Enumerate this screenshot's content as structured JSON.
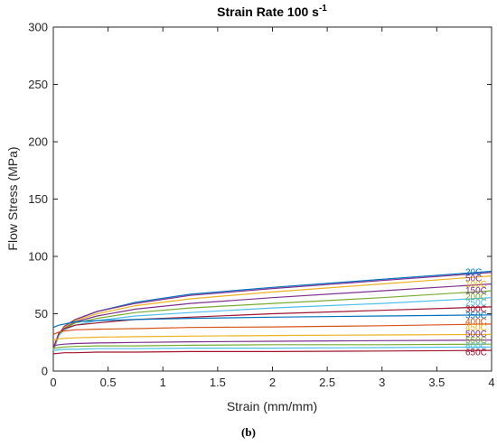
{
  "chart_data": {
    "type": "line",
    "title": "Strain Rate 100 s",
    "title_superscript": "-1",
    "xlabel": "Strain (mm/mm)",
    "ylabel": "Flow Stress (MPa)",
    "xlim": [
      0,
      4
    ],
    "ylim": [
      0,
      300
    ],
    "x_ticks": [
      "0",
      "0.5",
      "1",
      "1.5",
      "2",
      "2.5",
      "3",
      "3.5",
      "4"
    ],
    "y_ticks": [
      "0",
      "50",
      "100",
      "150",
      "200",
      "250",
      "300"
    ],
    "x": [
      0,
      0.05,
      0.1,
      0.2,
      0.4,
      0.75,
      1.25,
      2,
      3,
      4
    ],
    "series": [
      {
        "name": "20C",
        "color": "#0072bd",
        "values": [
          18,
          32,
          39,
          45,
          52,
          60,
          67,
          73,
          80,
          87
        ]
      },
      {
        "name": "50C",
        "color": "#7e2f8e",
        "values": [
          18,
          32,
          39,
          45,
          52,
          59,
          66,
          72,
          79,
          86
        ]
      },
      {
        "name": "100C",
        "color": "#edb120",
        "values": [
          18,
          31,
          38,
          44,
          50,
          57,
          63,
          69,
          76,
          83
        ]
      },
      {
        "name": "150C",
        "color": "#7e2f8e",
        "values": [
          18,
          31,
          37,
          43,
          48,
          54,
          59,
          64,
          70,
          76
        ]
      },
      {
        "name": "200C",
        "color": "#77ac30",
        "values": [
          18,
          31,
          37,
          42,
          46,
          51,
          55,
          59,
          64,
          70
        ]
      },
      {
        "name": "250C",
        "color": "#4dbeee",
        "values": [
          19,
          31,
          36,
          40,
          44,
          48,
          51,
          55,
          59,
          64
        ]
      },
      {
        "name": "300C",
        "color": "#a2142f",
        "values": [
          20,
          33,
          37,
          40,
          42,
          45,
          47,
          50,
          53,
          56
        ]
      },
      {
        "name": "350C",
        "color": "#0072bd",
        "values": [
          38,
          40,
          41,
          43,
          44,
          45,
          46,
          47,
          48,
          49
        ]
      },
      {
        "name": "400C",
        "color": "#d95319",
        "values": [
          32,
          34,
          35,
          36,
          36.5,
          37,
          38,
          38.5,
          39.5,
          41
        ]
      },
      {
        "name": "450C",
        "color": "#edb120",
        "values": [
          27,
          28,
          28.5,
          29,
          29.5,
          30,
          30.5,
          31,
          31.5,
          32
        ]
      },
      {
        "name": "500C",
        "color": "#7e2f8e",
        "values": [
          22,
          23,
          23.5,
          24,
          24.5,
          25,
          25.5,
          26,
          26.5,
          27
        ]
      },
      {
        "name": "550C",
        "color": "#77ac30",
        "values": [
          20,
          20.5,
          21,
          21.5,
          22,
          22,
          22.5,
          23,
          23,
          23.5
        ]
      },
      {
        "name": "600C",
        "color": "#4dbeee",
        "values": [
          18,
          18.5,
          19,
          19,
          19.5,
          19.5,
          20,
          20,
          20.5,
          21
        ]
      },
      {
        "name": "650C",
        "color": "#a2142f",
        "values": [
          15,
          15.5,
          16,
          16,
          16.5,
          16.5,
          17,
          17,
          17.5,
          18
        ]
      }
    ],
    "grid": false,
    "legend": "none"
  },
  "caption": "(b)"
}
